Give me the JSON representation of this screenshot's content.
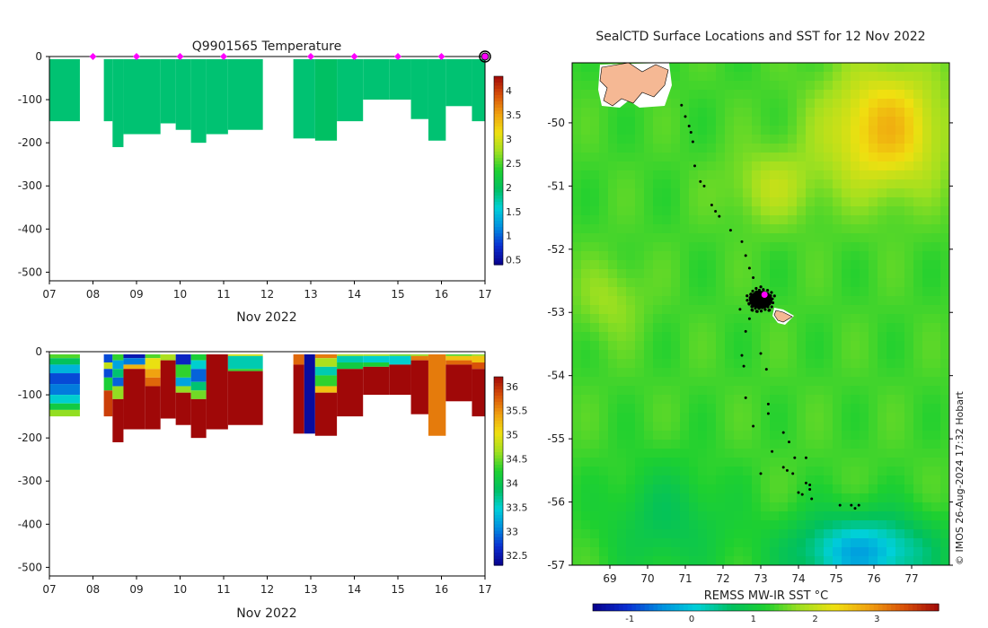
{
  "chart_data": [
    {
      "type": "heatmap",
      "title": "Q9901565  Temperature",
      "xlabel": "Nov 2022",
      "xticks": [
        "07",
        "08",
        "09",
        "10",
        "11",
        "12",
        "13",
        "14",
        "15",
        "16",
        "17"
      ],
      "yticks": [
        "0",
        "-100",
        "-200",
        "-300",
        "-400",
        "-500"
      ],
      "ylim": [
        -520,
        0
      ],
      "xlim": [
        7,
        17
      ],
      "colorbar_ticks": [
        "0.5",
        "1",
        "1.5",
        "2",
        "2.5",
        "3",
        "3.5",
        "4"
      ],
      "colorbar_range": [
        0.4,
        4.3
      ],
      "surface_markers_day": [
        8,
        9,
        10,
        11,
        13,
        14,
        15,
        16
      ],
      "current_marker_day": 17,
      "profiles": [
        {
          "x0": 7.0,
          "x1": 7.7,
          "depth": 150,
          "value": 1.9
        },
        {
          "x0": 8.25,
          "x1": 8.45,
          "depth": 150,
          "value": 1.9
        },
        {
          "x0": 8.45,
          "x1": 8.7,
          "depth": 210,
          "value": 1.9
        },
        {
          "x0": 8.7,
          "x1": 9.55,
          "depth": 180,
          "value": 1.9
        },
        {
          "x0": 9.55,
          "x1": 9.9,
          "depth": 155,
          "value": 1.9
        },
        {
          "x0": 9.9,
          "x1": 10.25,
          "depth": 170,
          "value": 1.9
        },
        {
          "x0": 10.25,
          "x1": 10.6,
          "depth": 200,
          "value": 1.9
        },
        {
          "x0": 10.6,
          "x1": 11.1,
          "depth": 180,
          "value": 1.9
        },
        {
          "x0": 11.1,
          "x1": 11.9,
          "depth": 170,
          "value": 1.9
        },
        {
          "x0": 12.6,
          "x1": 13.1,
          "depth": 190,
          "value": 1.9
        },
        {
          "x0": 13.1,
          "x1": 13.6,
          "depth": 195,
          "value": 1.95
        },
        {
          "x0": 13.6,
          "x1": 14.2,
          "depth": 150,
          "value": 1.9
        },
        {
          "x0": 14.2,
          "x1": 14.8,
          "depth": 100,
          "value": 1.9
        },
        {
          "x0": 14.8,
          "x1": 15.3,
          "depth": 100,
          "value": 1.9
        },
        {
          "x0": 15.3,
          "x1": 15.7,
          "depth": 145,
          "value": 1.9
        },
        {
          "x0": 15.7,
          "x1": 16.1,
          "depth": 195,
          "value": 1.9
        },
        {
          "x0": 16.1,
          "x1": 16.7,
          "depth": 115,
          "value": 1.9
        },
        {
          "x0": 16.7,
          "x1": 17.0,
          "depth": 150,
          "value": 1.9
        }
      ]
    },
    {
      "type": "heatmap",
      "title": "",
      "xlabel": "Nov 2022",
      "xticks": [
        "07",
        "08",
        "09",
        "10",
        "11",
        "12",
        "13",
        "14",
        "15",
        "16",
        "17"
      ],
      "yticks": [
        "0",
        "-100",
        "-200",
        "-300",
        "-400",
        "-500"
      ],
      "ylim": [
        -520,
        0
      ],
      "xlim": [
        7,
        17
      ],
      "colorbar_ticks": [
        "32.5",
        "33",
        "33.5",
        "34",
        "34.5",
        "35",
        "35.5",
        "36"
      ],
      "colorbar_range": [
        32.3,
        36.2
      ],
      "profiles": [
        {
          "x0": 7.0,
          "x1": 7.7,
          "depth": 150,
          "layers": [
            [
              0,
              15,
              34.4
            ],
            [
              15,
              30,
              33.9
            ],
            [
              30,
              50,
              33.3
            ],
            [
              50,
              75,
              32.8
            ],
            [
              75,
              100,
              33.0
            ],
            [
              100,
              120,
              33.5
            ],
            [
              120,
              135,
              34.1
            ],
            [
              135,
              150,
              34.6
            ]
          ]
        },
        {
          "x0": 8.25,
          "x1": 8.45,
          "depth": 150,
          "layers": [
            [
              0,
              25,
              32.8
            ],
            [
              25,
              40,
              34.8
            ],
            [
              40,
              60,
              32.8
            ],
            [
              60,
              90,
              34.2
            ],
            [
              90,
              150,
              35.9
            ]
          ]
        },
        {
          "x0": 8.45,
          "x1": 8.7,
          "depth": 210,
          "layers": [
            [
              0,
              20,
              34.3
            ],
            [
              20,
              40,
              33.2
            ],
            [
              40,
              60,
              33.8
            ],
            [
              60,
              80,
              32.9
            ],
            [
              80,
              110,
              34.6
            ],
            [
              110,
              210,
              36.2
            ]
          ]
        },
        {
          "x0": 8.7,
          "x1": 9.2,
          "depth": 180,
          "layers": [
            [
              0,
              15,
              32.5
            ],
            [
              15,
              30,
              33.0
            ],
            [
              30,
              40,
              35.3
            ],
            [
              40,
              180,
              36.2
            ]
          ]
        },
        {
          "x0": 9.2,
          "x1": 9.55,
          "depth": 180,
          "layers": [
            [
              0,
              15,
              34.4
            ],
            [
              15,
              40,
              35.0
            ],
            [
              40,
              60,
              35.4
            ],
            [
              60,
              80,
              35.7
            ],
            [
              80,
              180,
              36.2
            ]
          ]
        },
        {
          "x0": 9.55,
          "x1": 9.9,
          "depth": 155,
          "layers": [
            [
              0,
              20,
              34.7
            ],
            [
              20,
              155,
              36.2
            ]
          ]
        },
        {
          "x0": 9.9,
          "x1": 10.25,
          "depth": 170,
          "layers": [
            [
              0,
              30,
              32.6
            ],
            [
              30,
              60,
              34.3
            ],
            [
              60,
              80,
              33.2
            ],
            [
              80,
              95,
              34.6
            ],
            [
              95,
              170,
              36.2
            ]
          ]
        },
        {
          "x0": 10.25,
          "x1": 10.6,
          "depth": 200,
          "layers": [
            [
              0,
              20,
              34.2
            ],
            [
              20,
              40,
              33.5
            ],
            [
              40,
              70,
              32.9
            ],
            [
              70,
              90,
              33.8
            ],
            [
              90,
              110,
              34.5
            ],
            [
              110,
              200,
              36.2
            ]
          ]
        },
        {
          "x0": 10.6,
          "x1": 11.1,
          "depth": 180,
          "layers": [
            [
              0,
              180,
              36.2
            ]
          ]
        },
        {
          "x0": 11.1,
          "x1": 11.9,
          "depth": 170,
          "layers": [
            [
              0,
              10,
              34.9
            ],
            [
              10,
              40,
              33.6
            ],
            [
              40,
              45,
              34.3
            ],
            [
              45,
              170,
              36.2
            ]
          ]
        },
        {
          "x0": 12.6,
          "x1": 12.85,
          "depth": 190,
          "layers": [
            [
              0,
              30,
              35.7
            ],
            [
              30,
              190,
              36.2
            ]
          ]
        },
        {
          "x0": 12.85,
          "x1": 13.1,
          "depth": 190,
          "layers": [
            [
              0,
              190,
              32.4
            ]
          ]
        },
        {
          "x0": 13.1,
          "x1": 13.6,
          "depth": 195,
          "layers": [
            [
              0,
              15,
              35.6
            ],
            [
              15,
              35,
              34.7
            ],
            [
              35,
              55,
              33.6
            ],
            [
              55,
              80,
              34.3
            ],
            [
              80,
              95,
              35.2
            ],
            [
              95,
              195,
              36.2
            ]
          ]
        },
        {
          "x0": 13.6,
          "x1": 14.2,
          "depth": 150,
          "layers": [
            [
              0,
              10,
              34.7
            ],
            [
              10,
              25,
              33.6
            ],
            [
              25,
              40,
              34.1
            ],
            [
              40,
              150,
              36.2
            ]
          ]
        },
        {
          "x0": 14.2,
          "x1": 14.8,
          "depth": 100,
          "layers": [
            [
              0,
              10,
              34.7
            ],
            [
              10,
              25,
              33.5
            ],
            [
              25,
              35,
              34.2
            ],
            [
              35,
              100,
              36.2
            ]
          ]
        },
        {
          "x0": 14.8,
          "x1": 15.3,
          "depth": 100,
          "layers": [
            [
              0,
              10,
              34.5
            ],
            [
              10,
              30,
              33.5
            ],
            [
              30,
              100,
              36.2
            ]
          ]
        },
        {
          "x0": 15.3,
          "x1": 15.7,
          "depth": 145,
          "layers": [
            [
              0,
              10,
              34.6
            ],
            [
              10,
              20,
              35.6
            ],
            [
              20,
              145,
              36.2
            ]
          ]
        },
        {
          "x0": 15.7,
          "x1": 16.1,
          "depth": 195,
          "layers": [
            [
              0,
              195,
              35.6
            ]
          ]
        },
        {
          "x0": 16.1,
          "x1": 16.7,
          "depth": 115,
          "layers": [
            [
              0,
              10,
              34.4
            ],
            [
              10,
              20,
              35.2
            ],
            [
              20,
              30,
              35.7
            ],
            [
              30,
              115,
              36.2
            ]
          ]
        },
        {
          "x0": 16.7,
          "x1": 17.0,
          "depth": 150,
          "layers": [
            [
              0,
              10,
              34.6
            ],
            [
              10,
              25,
              35.2
            ],
            [
              25,
              40,
              35.8
            ],
            [
              40,
              150,
              36.2
            ]
          ]
        }
      ]
    },
    {
      "type": "heatmap",
      "title": "SealCTD Surface Locations and SST for 12 Nov 2022",
      "colorbar_label": "REMSS MW-IR SST °C",
      "colorbar_ticks": [
        "-1",
        "0",
        "1",
        "2",
        "3"
      ],
      "colorbar_range": [
        -1.6,
        4.0
      ],
      "xticks": [
        "69",
        "70",
        "71",
        "72",
        "73",
        "74",
        "75",
        "76",
        "77"
      ],
      "yticks": [
        "-50",
        "-51",
        "-52",
        "-53",
        "-54",
        "-55",
        "-56",
        "-57"
      ],
      "xlim": [
        68.0,
        78.0
      ],
      "ylim": [
        -57.0,
        -49.05
      ],
      "credit": "© IMOS 26-Aug-2024 17:32 Hobart",
      "highlight_position": {
        "lon": 73.1,
        "lat": -52.72
      },
      "cluster_center": {
        "lon": 73.0,
        "lat": -52.8
      },
      "track_points": [
        [
          70.9,
          -49.72
        ],
        [
          71.0,
          -49.9
        ],
        [
          71.1,
          -50.05
        ],
        [
          71.15,
          -50.15
        ],
        [
          71.2,
          -50.3
        ],
        [
          71.25,
          -50.68
        ],
        [
          71.4,
          -50.93
        ],
        [
          71.5,
          -51.0
        ],
        [
          71.7,
          -51.3
        ],
        [
          71.8,
          -51.4
        ],
        [
          71.9,
          -51.48
        ],
        [
          72.2,
          -51.7
        ],
        [
          72.5,
          -51.88
        ],
        [
          72.6,
          -52.1
        ],
        [
          72.7,
          -52.3
        ],
        [
          72.8,
          -52.45
        ],
        [
          72.45,
          -52.95
        ],
        [
          72.7,
          -53.1
        ],
        [
          72.6,
          -53.3
        ],
        [
          72.5,
          -53.68
        ],
        [
          73.0,
          -53.65
        ],
        [
          72.55,
          -53.85
        ],
        [
          73.15,
          -53.9
        ],
        [
          72.6,
          -54.35
        ],
        [
          73.2,
          -54.45
        ],
        [
          73.2,
          -54.6
        ],
        [
          72.8,
          -54.8
        ],
        [
          73.6,
          -54.9
        ],
        [
          73.75,
          -55.05
        ],
        [
          73.3,
          -55.2
        ],
        [
          73.9,
          -55.3
        ],
        [
          74.2,
          -55.3
        ],
        [
          73.6,
          -55.45
        ],
        [
          73.7,
          -55.5
        ],
        [
          73.85,
          -55.55
        ],
        [
          73.0,
          -55.55
        ],
        [
          74.2,
          -55.7
        ],
        [
          74.3,
          -55.73
        ],
        [
          74.3,
          -55.8
        ],
        [
          74.0,
          -55.85
        ],
        [
          74.1,
          -55.88
        ],
        [
          74.35,
          -55.95
        ],
        [
          75.1,
          -56.05
        ],
        [
          75.4,
          -56.05
        ],
        [
          75.5,
          -56.1
        ],
        [
          75.6,
          -56.05
        ]
      ]
    }
  ],
  "colormap": [
    "#08008c",
    "#0a2fd2",
    "#0090e0",
    "#00d0d8",
    "#00c060",
    "#1ed030",
    "#a0e020",
    "#f0e010",
    "#f0a010",
    "#d85008",
    "#a00808"
  ]
}
